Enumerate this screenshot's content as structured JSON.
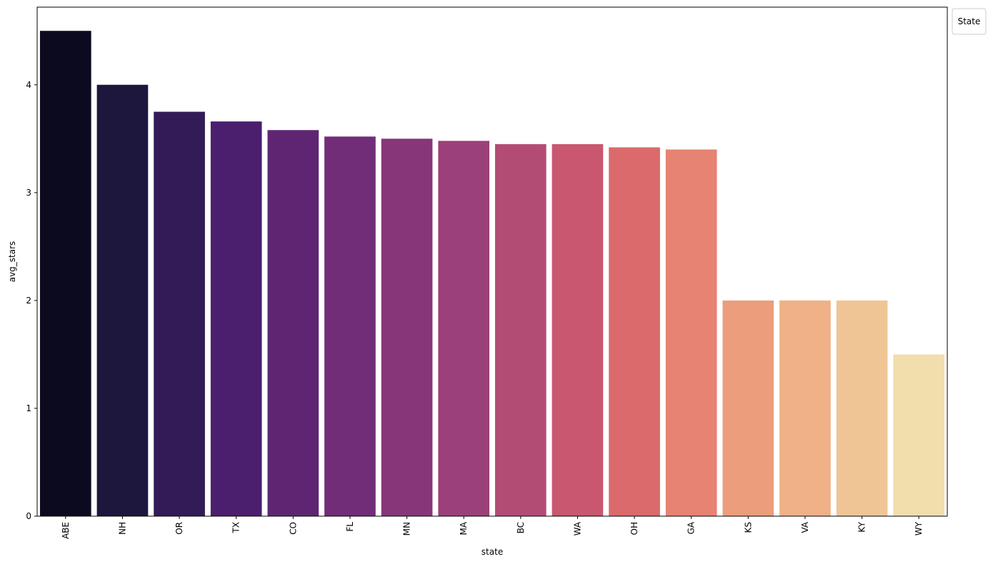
{
  "chart_data": {
    "type": "bar",
    "title": "",
    "xlabel": "state",
    "ylabel": "avg_stars",
    "categories": [
      "ABE",
      "NH",
      "OR",
      "TX",
      "CO",
      "FL",
      "MN",
      "MA",
      "BC",
      "WA",
      "OH",
      "GA",
      "KS",
      "VA",
      "KY",
      "WY"
    ],
    "values": [
      4.5,
      4.0,
      3.75,
      3.66,
      3.58,
      3.52,
      3.5,
      3.48,
      3.45,
      3.45,
      3.42,
      3.4,
      2.0,
      2.0,
      2.0,
      1.5
    ],
    "colors": [
      "#0c0a1f",
      "#1d173e",
      "#321b57",
      "#4b1f6e",
      "#5e2672",
      "#722d78",
      "#87367a",
      "#9c4079",
      "#b24c75",
      "#c8576f",
      "#da6a6c",
      "#e68372",
      "#ec9d7b",
      "#efb185",
      "#f0c596",
      "#f2ddad"
    ],
    "ylim": [
      0,
      4.72
    ],
    "yticks": [
      0,
      1,
      2,
      3,
      4
    ],
    "grid": false,
    "legend": {
      "title": "State",
      "placement": "outside-top-right",
      "entries": []
    }
  }
}
